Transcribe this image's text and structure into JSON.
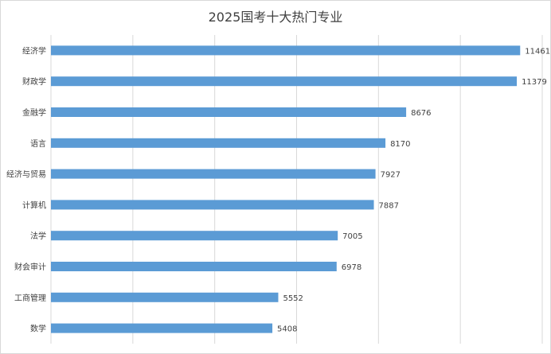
{
  "chart_data": {
    "type": "bar",
    "orientation": "horizontal",
    "title": "2025国考十大热门专业",
    "categories": [
      "经济学",
      "财政学",
      "金融学",
      "语言",
      "经济与贸易",
      "计算机",
      "法学",
      "财会审计",
      "工商管理",
      "数学"
    ],
    "values": [
      11461,
      11379,
      8676,
      8170,
      7927,
      7887,
      7005,
      6978,
      5552,
      5408
    ],
    "xlim": [
      0,
      12000
    ],
    "x_gridlines": [
      0,
      2000,
      4000,
      6000,
      8000,
      10000,
      12000
    ],
    "show_tick_labels_x": false,
    "data_labels": true,
    "grid": true,
    "legend": "none",
    "bar_color": "#5b9bd5"
  }
}
